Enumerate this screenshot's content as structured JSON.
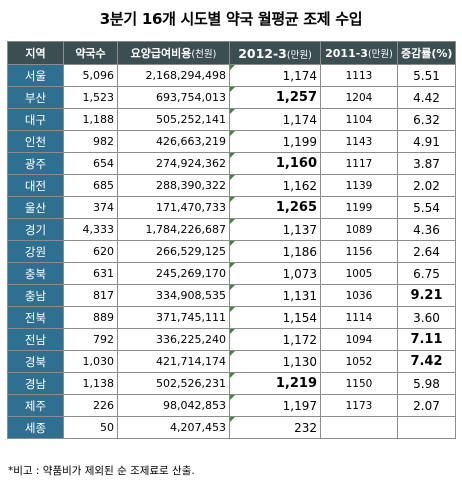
{
  "title": "3분기 16개 시도별 약국 월평균 조제 수입",
  "headers": {
    "region": "지역",
    "pharmacies": "약국수",
    "claims": "요양급여비용",
    "claims_unit": "(천원)",
    "y2012": "2012-3",
    "y2012_unit": "(만원)",
    "y2011": "2011-3",
    "y2011_unit": "(만원)",
    "rate": "증감률(%)"
  },
  "rows": [
    {
      "region": "서울",
      "pharmacies": "5,096",
      "claims": "2,168,294,498",
      "y2012": "1,174",
      "y2011": "1113",
      "rate": "5.51"
    },
    {
      "region": "부산",
      "pharmacies": "1,523",
      "claims": "693,754,013",
      "y2012": "1,257",
      "y2011": "1204",
      "rate": "4.42"
    },
    {
      "region": "대구",
      "pharmacies": "1,188",
      "claims": "505,252,141",
      "y2012": "1,174",
      "y2011": "1104",
      "rate": "6.32"
    },
    {
      "region": "인천",
      "pharmacies": "982",
      "claims": "426,663,219",
      "y2012": "1,199",
      "y2011": "1143",
      "rate": "4.91"
    },
    {
      "region": "광주",
      "pharmacies": "654",
      "claims": "274,924,362",
      "y2012": "1,160",
      "y2011": "1117",
      "rate": "3.87"
    },
    {
      "region": "대전",
      "pharmacies": "685",
      "claims": "288,390,322",
      "y2012": "1,162",
      "y2011": "1139",
      "rate": "2.02"
    },
    {
      "region": "울산",
      "pharmacies": "374",
      "claims": "171,470,733",
      "y2012": "1,265",
      "y2011": "1199",
      "rate": "5.54"
    },
    {
      "region": "경기",
      "pharmacies": "4,333",
      "claims": "1,784,226,687",
      "y2012": "1,137",
      "y2011": "1089",
      "rate": "4.36"
    },
    {
      "region": "강원",
      "pharmacies": "620",
      "claims": "266,529,125",
      "y2012": "1,186",
      "y2011": "1156",
      "rate": "2.64"
    },
    {
      "region": "충북",
      "pharmacies": "631",
      "claims": "245,269,170",
      "y2012": "1,073",
      "y2011": "1005",
      "rate": "6.75"
    },
    {
      "region": "충남",
      "pharmacies": "817",
      "claims": "334,908,535",
      "y2012": "1,131",
      "y2011": "1036",
      "rate": "9.21"
    },
    {
      "region": "전북",
      "pharmacies": "889",
      "claims": "371,745,111",
      "y2012": "1,154",
      "y2011": "1114",
      "rate": "3.60"
    },
    {
      "region": "전남",
      "pharmacies": "792",
      "claims": "336,225,240",
      "y2012": "1,172",
      "y2011": "1094",
      "rate": "7.11"
    },
    {
      "region": "경북",
      "pharmacies": "1,030",
      "claims": "421,714,174",
      "y2012": "1,130",
      "y2011": "1052",
      "rate": "7.42"
    },
    {
      "region": "경남",
      "pharmacies": "1,138",
      "claims": "502,526,231",
      "y2012": "1,219",
      "y2011": "1150",
      "rate": "5.98"
    },
    {
      "region": "제주",
      "pharmacies": "226",
      "claims": "98,042,853",
      "y2012": "1,197",
      "y2011": "1173",
      "rate": "2.07"
    },
    {
      "region": "세종",
      "pharmacies": "50",
      "claims": "4,207,453",
      "y2012": "232",
      "y2011": "",
      "rate": ""
    }
  ],
  "footnote": "*비고 : 약품비가 제외된 순 조제료로 산출."
}
